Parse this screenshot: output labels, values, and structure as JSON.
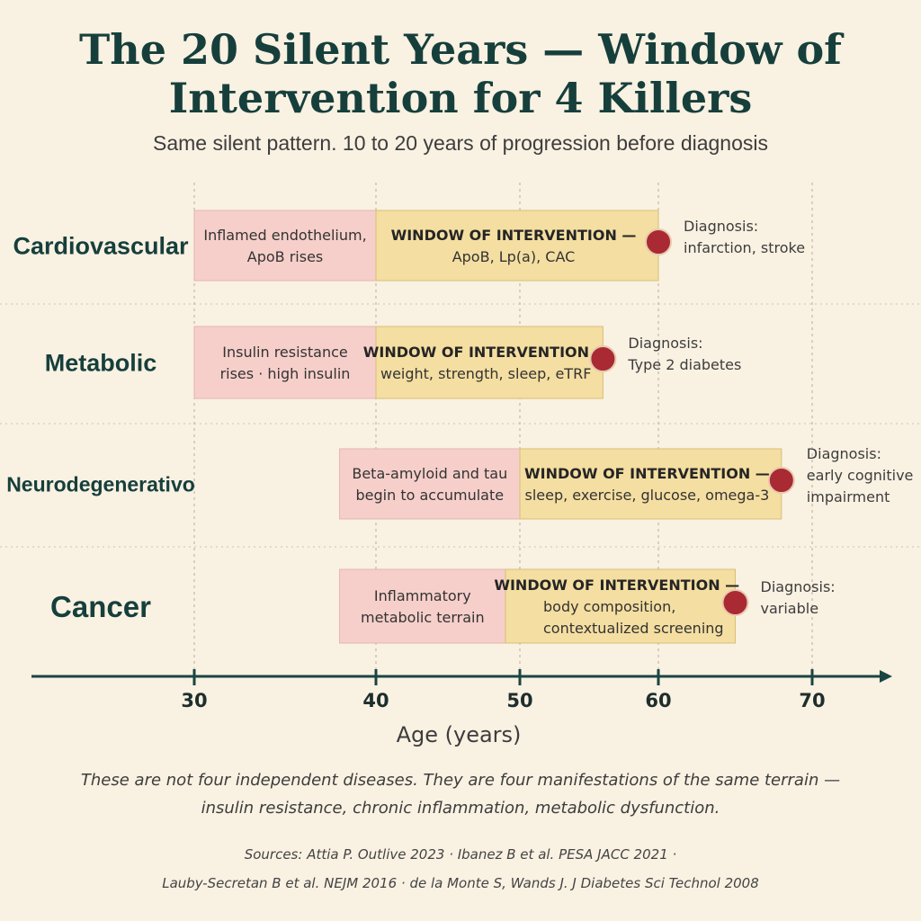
{
  "title": {
    "line1": "The 20 Silent Years — Window of",
    "line2": "Intervention for 4 Killers"
  },
  "subtitle": "Same silent pattern. 10 to 20 years of progression before diagnosis",
  "axis": {
    "title": "Age (years)",
    "ticks": [
      30,
      40,
      50,
      60,
      70
    ],
    "range": [
      23,
      74
    ]
  },
  "colors": {
    "pre_phase": "#f6cfca",
    "window": "#f4dea1",
    "diagnosis_dot": "#a92a32",
    "heading": "#163f3c"
  },
  "rows": [
    {
      "label": "Cardiovascular",
      "pre_start": 30,
      "window_start": 40,
      "diagnosis": 60,
      "pre_text": [
        "Inflamed endothelium,",
        "ApoB rises"
      ],
      "window_title": "WINDOW OF INTERVENTION —",
      "window_text": [
        "ApoB, Lp(a), CAC"
      ],
      "diagnosis_text": [
        "Diagnosis:",
        "infarction, stroke"
      ]
    },
    {
      "label": "Metabolic",
      "pre_start": 30,
      "window_start": 40,
      "diagnosis": 56,
      "pre_text": [
        "Insulin resistance",
        "rises · high insulin"
      ],
      "window_title": "WINDOW OF INTERVENTION —",
      "window_text": [
        "weight, strength, sleep, eTRF"
      ],
      "diagnosis_text": [
        "Diagnosis:",
        "Type 2 diabetes"
      ]
    },
    {
      "label": "Neurodegenerativo",
      "pre_start": 38,
      "window_start": 50,
      "diagnosis": 68,
      "pre_text": [
        "Beta-amyloid and tau",
        "begin to accumulate"
      ],
      "window_title": "WINDOW OF INTERVENTION —",
      "window_text": [
        "sleep, exercise, glucose, omega-3"
      ],
      "diagnosis_text": [
        "Diagnosis:",
        "early cognitive",
        "impairment"
      ]
    },
    {
      "label": "Cancer",
      "pre_start": 38,
      "window_start": 49,
      "diagnosis": 65,
      "pre_text": [
        "Inflammatory",
        "metabolic terrain"
      ],
      "window_title": "WINDOW OF INTERVENTION —",
      "window_text": [
        "body composition,",
        "contextualized screening"
      ],
      "diagnosis_text": [
        "Diagnosis:",
        "variable"
      ]
    }
  ],
  "footnote": {
    "line1": "These are not four independent diseases. They are four manifestations of the same terrain —",
    "line2": "insulin resistance, chronic inflammation, metabolic dysfunction."
  },
  "sources": {
    "line1": "Sources: Attia P. Outlive 2023 · Ibanez B et al. PESA JACC 2021 ·",
    "line2": "Lauby-Secretan B et al. NEJM 2016 · de la Monte S, Wands J. J Diabetes Sci Technol 2008"
  }
}
